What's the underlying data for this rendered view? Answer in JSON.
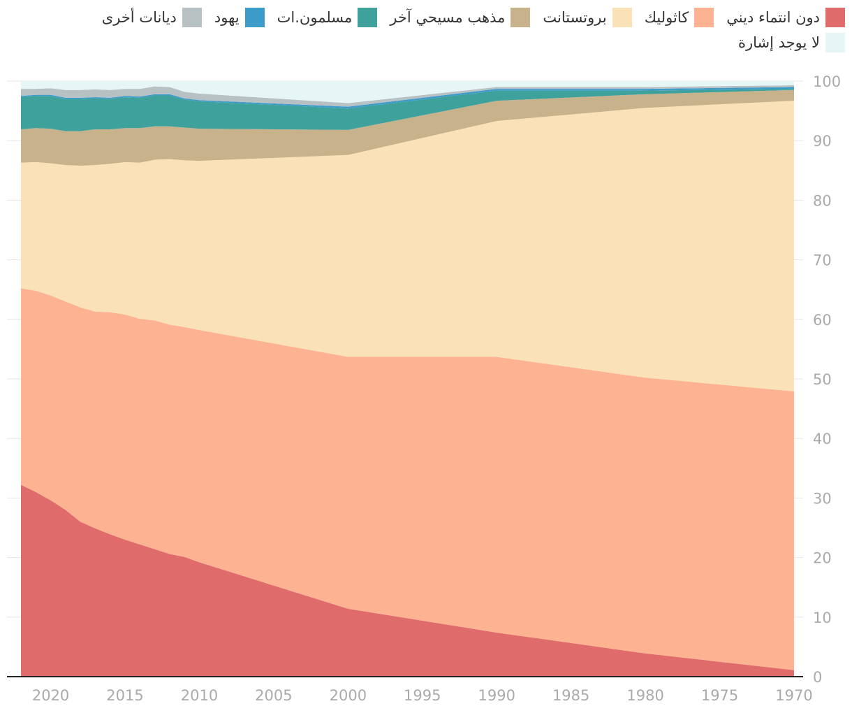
{
  "chart_data": {
    "type": "area",
    "stacked": true,
    "title": "",
    "xlabel": "",
    "ylabel": "",
    "xlim": [
      2022,
      1970
    ],
    "ylim": [
      0,
      100
    ],
    "x_ticks": [
      2020,
      2015,
      2010,
      2005,
      2000,
      1995,
      1990,
      1985,
      1980,
      1975,
      1970
    ],
    "y_ticks": [
      0,
      10,
      20,
      30,
      40,
      50,
      60,
      70,
      80,
      90,
      100
    ],
    "x": [
      2022,
      2021,
      2020,
      2019,
      2018,
      2017,
      2016,
      2015,
      2014,
      2013,
      2012,
      2011,
      2010,
      2000,
      1990,
      1980,
      1970
    ],
    "series": [
      {
        "name": "دون انتماء ديني",
        "color": "#e06b6b",
        "values": [
          32.2,
          31.0,
          29.6,
          28.0,
          26.0,
          24.9,
          23.9,
          23.0,
          22.2,
          21.4,
          20.6,
          20.1,
          19.2,
          11.4,
          7.4,
          3.9,
          1.1
        ]
      },
      {
        "name": "كاثوليك",
        "color": "#fdb292",
        "values": [
          33.0,
          33.8,
          34.4,
          35.0,
          36.0,
          36.4,
          37.3,
          37.8,
          37.9,
          38.4,
          38.5,
          38.6,
          39.0,
          42.3,
          46.3,
          46.3,
          46.8
        ]
      },
      {
        "name": "بروتستانت",
        "color": "#fbe1b7",
        "values": [
          21.1,
          21.6,
          22.2,
          22.9,
          23.8,
          24.6,
          24.9,
          25.6,
          26.2,
          27.0,
          27.8,
          28.0,
          28.4,
          33.9,
          39.6,
          45.3,
          48.8
        ]
      },
      {
        "name": "مذهب مسيحي آخر",
        "color": "#c8b28b",
        "values": [
          5.6,
          5.7,
          5.8,
          5.7,
          5.8,
          6.0,
          5.8,
          5.7,
          5.8,
          5.6,
          5.5,
          5.5,
          5.4,
          4.2,
          3.4,
          2.3,
          1.8
        ]
      },
      {
        "name": "مسلمون.ات",
        "color": "#3fa19c",
        "values": [
          5.4,
          5.4,
          5.5,
          5.4,
          5.4,
          5.2,
          5.1,
          5.2,
          5.1,
          5.2,
          5.2,
          4.7,
          4.6,
          3.6,
          1.7,
          0.6,
          0.2
        ]
      },
      {
        "name": "يهود",
        "color": "#3d9bc9",
        "values": [
          0.2,
          0.2,
          0.2,
          0.2,
          0.2,
          0.2,
          0.2,
          0.2,
          0.2,
          0.2,
          0.2,
          0.2,
          0.2,
          0.3,
          0.3,
          0.3,
          0.3
        ]
      },
      {
        "name": "ديانات أخرى",
        "color": "#b7c1c3",
        "values": [
          1.2,
          1.0,
          1.1,
          1.3,
          1.3,
          1.3,
          1.3,
          1.2,
          1.3,
          1.3,
          1.2,
          1.1,
          1.1,
          0.6,
          0.3,
          0.3,
          0.3
        ]
      },
      {
        "name": "لا يوجد إشارة",
        "color": "#e6f5f5",
        "values": [
          1.3,
          1.3,
          1.2,
          1.5,
          1.5,
          1.4,
          1.5,
          1.3,
          1.3,
          0.9,
          1.0,
          1.8,
          2.1,
          3.7,
          1.0,
          1.0,
          0.7
        ]
      }
    ]
  }
}
